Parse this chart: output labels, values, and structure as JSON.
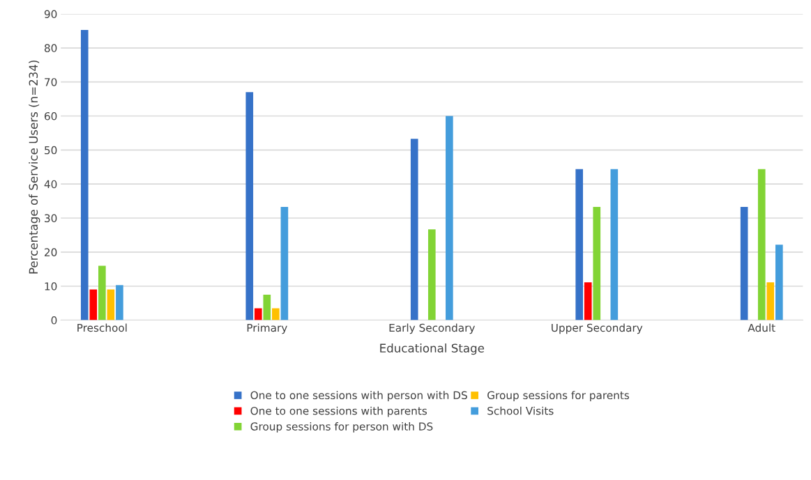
{
  "chart_data": {
    "type": "bar",
    "xlabel": "Educational Stage",
    "ylabel": "Percentage of Service Users (n=234)",
    "categories": [
      "Preschool",
      "Primary",
      "Early Secondary",
      "Upper Secondary",
      "Adult"
    ],
    "series": [
      {
        "name": "One to one sessions with person with DS",
        "color": "#3672c8",
        "values": [
          85.3,
          67,
          53.3,
          44.4,
          33.3
        ]
      },
      {
        "name": "One to one sessions with parents",
        "color": "#ff0000",
        "values": [
          9,
          3.5,
          0,
          11.1,
          0
        ]
      },
      {
        "name": "Group sessions for person with DS",
        "color": "#82d435",
        "values": [
          16,
          7.5,
          26.7,
          33.3,
          44.4
        ]
      },
      {
        "name": "Group sessions for parents",
        "color": "#ffc000",
        "values": [
          9,
          3.5,
          0,
          0,
          11.1
        ]
      },
      {
        "name": "School Visits",
        "color": "#449ddc",
        "values": [
          10.3,
          33.3,
          60,
          44.4,
          22.2
        ]
      }
    ],
    "ylim": [
      0,
      90
    ],
    "yticks": [
      0,
      10,
      20,
      30,
      40,
      50,
      60,
      70,
      80,
      90
    ],
    "grid": "y",
    "legend": "bottom"
  }
}
